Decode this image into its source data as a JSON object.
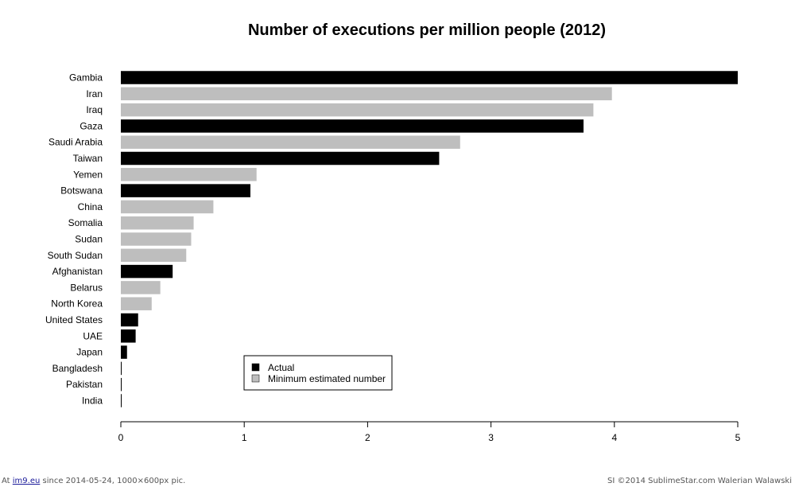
{
  "chart_data": {
    "type": "bar",
    "orientation": "horizontal",
    "title": "Number of executions per million people (2012)",
    "xlabel": "",
    "ylabel": "",
    "xlim": [
      0,
      5
    ],
    "x_ticks": [
      0,
      1,
      2,
      3,
      4,
      5
    ],
    "grid": false,
    "legend_position": "bottom-center",
    "legend": [
      {
        "label": "Actual",
        "color": "#000000"
      },
      {
        "label": "Minimum estimated number",
        "color": "#bebebe"
      }
    ],
    "categories": [
      "Gambia",
      "Iran",
      "Iraq",
      "Gaza",
      "Saudi Arabia",
      "Taiwan",
      "Yemen",
      "Botswana",
      "China",
      "Somalia",
      "Sudan",
      "South Sudan",
      "Afghanistan",
      "Belarus",
      "North Korea",
      "United States",
      "UAE",
      "Japan",
      "Bangladesh",
      "Pakistan",
      "India"
    ],
    "values": [
      5.0,
      3.98,
      3.83,
      3.75,
      2.75,
      2.58,
      1.1,
      1.05,
      0.75,
      0.59,
      0.57,
      0.53,
      0.42,
      0.32,
      0.25,
      0.14,
      0.12,
      0.05,
      0.006,
      0.006,
      0.001
    ],
    "types": [
      "actual",
      "estimate",
      "estimate",
      "actual",
      "estimate",
      "actual",
      "estimate",
      "actual",
      "estimate",
      "estimate",
      "estimate",
      "estimate",
      "actual",
      "estimate",
      "estimate",
      "actual",
      "actual",
      "actual",
      "actual",
      "actual",
      "actual"
    ]
  },
  "footer": {
    "left_prefix": "At ",
    "left_link": "im9.eu",
    "left_suffix": " since 2014-05-24, 1000×600px pic.",
    "right": "SI ©2014 SublimeStar.com Walerian Walawski"
  }
}
